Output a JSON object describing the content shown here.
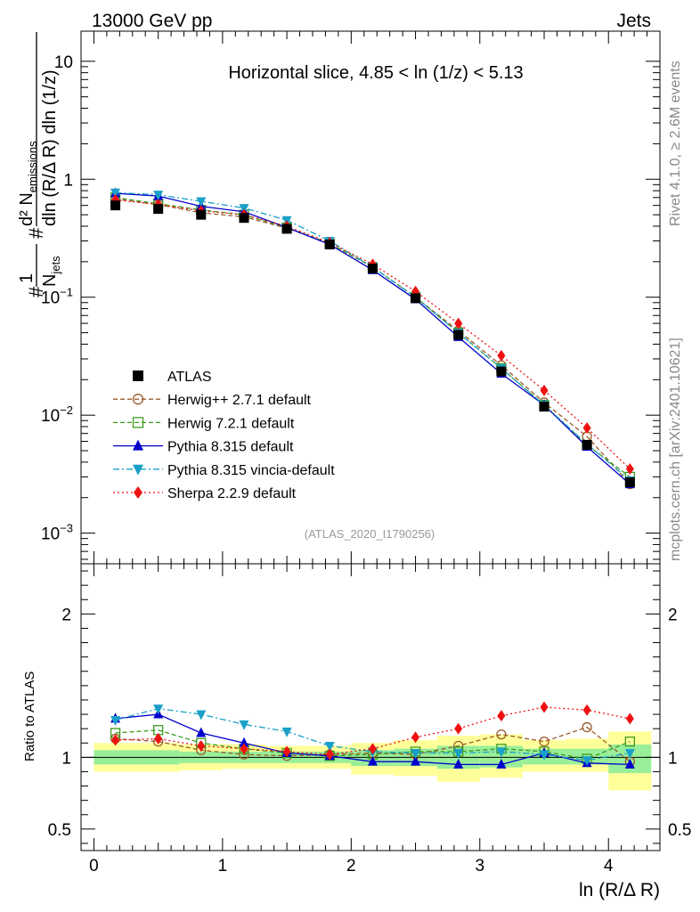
{
  "chart_data": {
    "type": "line",
    "header": {
      "left": "13000 GeV pp",
      "right": "Jets"
    },
    "title": "Horizontal slice, 4.85 < ln (1/z) < 5.13",
    "watermark": "(ATLAS_2020_I1790256)",
    "side_text": {
      "top": "Rivet 4.1.0, ≥ 2.6M events",
      "bottom": "mcplots.cern.ch [arXiv:2401.10621]"
    },
    "ylabel": {
      "prefix": "#",
      "frac_num": "1",
      "frac_den": "N",
      "frac_den_sub": "jets",
      "mid": "#",
      "main": "d² N",
      "main_sub": "emissions",
      "den": "dln (R/Δ R) dln (1/z)"
    },
    "xlabel": "ln (R/Δ R)",
    "ratio_ylabel": "Ratio to ATLAS",
    "xlim": [
      -0.1,
      4.4
    ],
    "ylim_main": [
      0.00055,
      18
    ],
    "ylim_ratio": [
      0.35,
      2.35
    ],
    "x_ticks": [
      0,
      1,
      2,
      3,
      4
    ],
    "x_tick_labels": [
      "0",
      "1",
      "2",
      "3",
      "4"
    ],
    "y_ticks_main": [
      0.001,
      0.01,
      0.1,
      1,
      10
    ],
    "y_tick_labels_main": [
      {
        "base": "10",
        "exp": "−3"
      },
      {
        "base": "10",
        "exp": "−2"
      },
      {
        "base": "10",
        "exp": "−1"
      },
      {
        "base": "1",
        "exp": ""
      },
      {
        "base": "10",
        "exp": ""
      }
    ],
    "y_ticks_ratio": [
      0.5,
      1,
      2
    ],
    "y_tick_labels_ratio": [
      "0.5",
      "1",
      "2"
    ],
    "x": [
      0.167,
      0.5,
      0.833,
      1.167,
      1.5,
      1.833,
      2.167,
      2.5,
      2.833,
      3.167,
      3.5,
      3.833,
      4.167
    ],
    "bin_edges": [
      0,
      0.333,
      0.667,
      1.0,
      1.333,
      1.667,
      2.0,
      2.333,
      2.667,
      3.0,
      3.333,
      3.667,
      4.0,
      4.333
    ],
    "band_yellow": [
      [
        0.9,
        1.1
      ],
      [
        0.9,
        1.1
      ],
      [
        0.91,
        1.09
      ],
      [
        0.92,
        1.09
      ],
      [
        0.92,
        1.08
      ],
      [
        0.92,
        1.08
      ],
      [
        0.88,
        1.1
      ],
      [
        0.87,
        1.12
      ],
      [
        0.83,
        1.15
      ],
      [
        0.86,
        1.16
      ],
      [
        0.9,
        1.12
      ],
      [
        0.9,
        1.13
      ],
      [
        0.77,
        1.18
      ]
    ],
    "band_green": [
      [
        0.95,
        1.05
      ],
      [
        0.95,
        1.05
      ],
      [
        0.96,
        1.04
      ],
      [
        0.96,
        1.04
      ],
      [
        0.96,
        1.04
      ],
      [
        0.96,
        1.04
      ],
      [
        0.94,
        1.05
      ],
      [
        0.94,
        1.06
      ],
      [
        0.92,
        1.08
      ],
      [
        0.93,
        1.08
      ],
      [
        0.95,
        1.06
      ],
      [
        0.95,
        1.06
      ],
      [
        0.89,
        1.09
      ]
    ],
    "series": [
      {
        "name": "ATLAS",
        "color": "#000000",
        "marker": "square-filled",
        "dash": "none",
        "values": [
          0.6,
          0.56,
          0.5,
          0.47,
          0.38,
          0.28,
          0.175,
          0.098,
          0.048,
          0.0235,
          0.0118,
          0.0056,
          0.0027
        ],
        "ratio": [
          1,
          1,
          1,
          1,
          1,
          1,
          1,
          1,
          1,
          1,
          1,
          1,
          1
        ]
      },
      {
        "name": "Herwig++ 2.7.1 default",
        "color": "#9b5a28",
        "marker": "circle-open",
        "dash": "5,3",
        "values": [
          0.68,
          0.61,
          0.52,
          0.48,
          0.385,
          0.285,
          0.18,
          0.1,
          0.052,
          0.0265,
          0.0128,
          0.0066,
          0.0026
        ],
        "ratio": [
          1.13,
          1.11,
          1.05,
          1.02,
          1.01,
          1.02,
          1.03,
          1.02,
          1.08,
          1.16,
          1.11,
          1.21,
          0.97
        ]
      },
      {
        "name": "Herwig 7.2.1 default",
        "color": "#3e9a20",
        "marker": "square-open",
        "dash": "5,3",
        "values": [
          0.7,
          0.62,
          0.55,
          0.5,
          0.39,
          0.285,
          0.18,
          0.1,
          0.05,
          0.025,
          0.0122,
          0.0056,
          0.003
        ],
        "ratio": [
          1.17,
          1.19,
          1.1,
          1.06,
          1.03,
          1.01,
          1.02,
          1.04,
          1.04,
          1.06,
          1.04,
          0.99,
          1.11
        ]
      },
      {
        "name": "Pythia 8.315 default",
        "color": "#0000cc",
        "marker": "triangle-up",
        "dash": "none",
        "values": [
          0.76,
          0.72,
          0.59,
          0.53,
          0.39,
          0.28,
          0.17,
          0.096,
          0.046,
          0.0225,
          0.0122,
          0.0054,
          0.0026
        ],
        "ratio": [
          1.27,
          1.3,
          1.17,
          1.1,
          1.03,
          1.01,
          0.97,
          0.97,
          0.95,
          0.95,
          1.03,
          0.96,
          0.95
        ]
      },
      {
        "name": "Pythia 8.315 vincia-default",
        "color": "#1aa0c8",
        "marker": "triangle-down",
        "dash": "7,3,2,3",
        "values": [
          0.77,
          0.74,
          0.65,
          0.57,
          0.45,
          0.3,
          0.18,
          0.1,
          0.05,
          0.025,
          0.0122,
          0.0057,
          0.0028
        ],
        "ratio": [
          1.26,
          1.34,
          1.3,
          1.23,
          1.18,
          1.08,
          1.04,
          1.03,
          1.03,
          1.04,
          1.02,
          0.98,
          1.03
        ]
      },
      {
        "name": "Sherpa 2.2.9 default",
        "color": "#ee1111",
        "marker": "diamond",
        "dash": "2,3",
        "values": [
          0.67,
          0.61,
          0.54,
          0.5,
          0.4,
          0.29,
          0.19,
          0.112,
          0.06,
          0.032,
          0.0162,
          0.0078,
          0.0035
        ],
        "ratio": [
          1.12,
          1.13,
          1.08,
          1.06,
          1.04,
          1.02,
          1.06,
          1.14,
          1.2,
          1.29,
          1.35,
          1.33,
          1.27
        ]
      }
    ]
  }
}
